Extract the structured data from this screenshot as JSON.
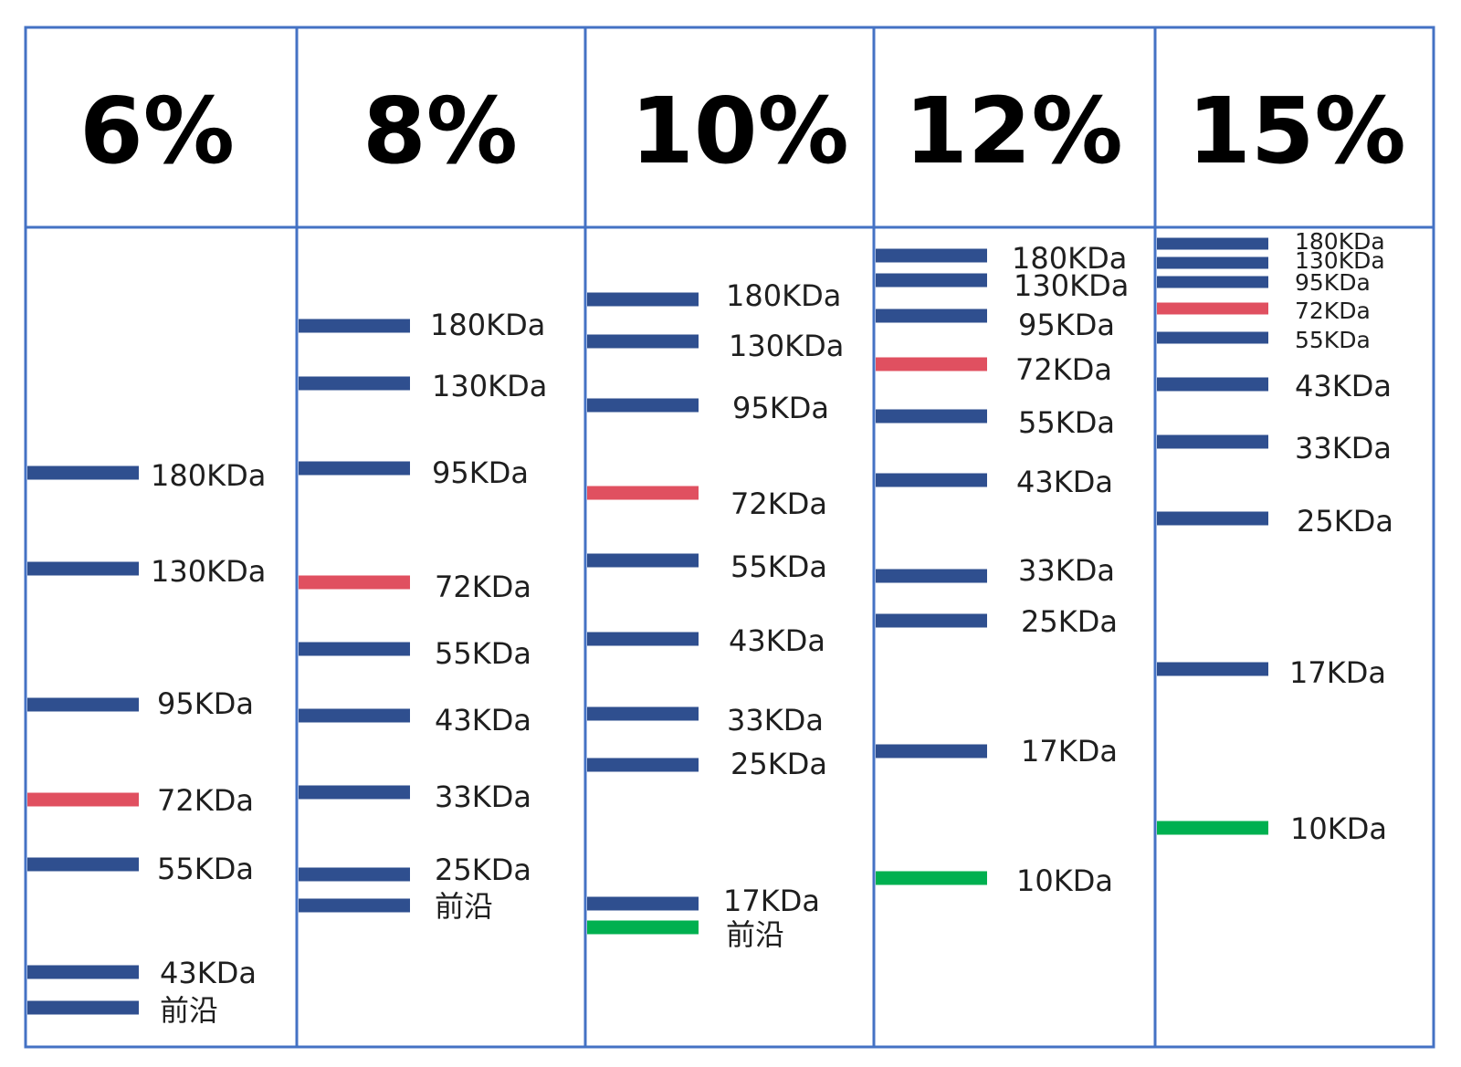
{
  "colors": {
    "grid_line": "#4472c4",
    "band_default": "#2f4f8f",
    "band_red": "#e05060",
    "band_green": "#00b050",
    "text": "#000000"
  },
  "lanes": [
    {
      "header": "6%",
      "bands": [
        {
          "label": "180KDa",
          "color": "band_default"
        },
        {
          "label": "130KDa",
          "color": "band_default"
        },
        {
          "label": "95KDa",
          "color": "band_default"
        },
        {
          "label": "72KDa",
          "color": "band_red"
        },
        {
          "label": "55KDa",
          "color": "band_default"
        },
        {
          "label": "43KDa",
          "color": "band_default"
        },
        {
          "label": "前沿",
          "color": "band_default"
        }
      ]
    },
    {
      "header": "8%",
      "bands": [
        {
          "label": "180KDa",
          "color": "band_default"
        },
        {
          "label": "130KDa",
          "color": "band_default"
        },
        {
          "label": "95KDa",
          "color": "band_default"
        },
        {
          "label": "72KDa",
          "color": "band_red"
        },
        {
          "label": "55KDa",
          "color": "band_default"
        },
        {
          "label": "43KDa",
          "color": "band_default"
        },
        {
          "label": "33KDa",
          "color": "band_default"
        },
        {
          "label": "25KDa",
          "color": "band_default"
        },
        {
          "label": "前沿",
          "color": "band_default"
        }
      ]
    },
    {
      "header": "10%",
      "bands": [
        {
          "label": "180KDa",
          "color": "band_default"
        },
        {
          "label": "130KDa",
          "color": "band_default"
        },
        {
          "label": "95KDa",
          "color": "band_default"
        },
        {
          "label": "72KDa",
          "color": "band_red"
        },
        {
          "label": "55KDa",
          "color": "band_default"
        },
        {
          "label": "43KDa",
          "color": "band_default"
        },
        {
          "label": "33KDa",
          "color": "band_default"
        },
        {
          "label": "25KDa",
          "color": "band_default"
        },
        {
          "label": "17KDa",
          "color": "band_default"
        },
        {
          "label": "前沿",
          "color": "band_green"
        }
      ]
    },
    {
      "header": "12%",
      "bands": [
        {
          "label": "180KDa",
          "color": "band_default"
        },
        {
          "label": "130KDa",
          "color": "band_default"
        },
        {
          "label": "95KDa",
          "color": "band_default"
        },
        {
          "label": "72KDa",
          "color": "band_red"
        },
        {
          "label": "55KDa",
          "color": "band_default"
        },
        {
          "label": "43KDa",
          "color": "band_default"
        },
        {
          "label": "33KDa",
          "color": "band_default"
        },
        {
          "label": "25KDa",
          "color": "band_default"
        },
        {
          "label": "17KDa",
          "color": "band_default"
        },
        {
          "label": "10KDa",
          "color": "band_green"
        }
      ]
    },
    {
      "header": "15%",
      "bands": [
        {
          "label": "180KDa",
          "color": "band_default"
        },
        {
          "label": "130KDa",
          "color": "band_default"
        },
        {
          "label": "95KDa",
          "color": "band_default"
        },
        {
          "label": "72KDa",
          "color": "band_red"
        },
        {
          "label": "55KDa",
          "color": "band_default"
        },
        {
          "label": "43KDa",
          "color": "band_default"
        },
        {
          "label": "33KDa",
          "color": "band_default"
        },
        {
          "label": "25KDa",
          "color": "band_default"
        },
        {
          "label": "17KDa",
          "color": "band_default"
        },
        {
          "label": "10KDa",
          "color": "band_green"
        }
      ]
    }
  ]
}
